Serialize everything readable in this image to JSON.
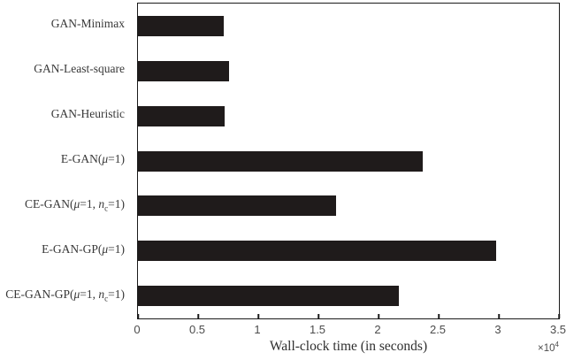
{
  "figure": {
    "background": "#ffffff",
    "bar_color": "#1f1b1b",
    "axis_color": "#1a1a1a",
    "tick_label_color": "#4c4c4c",
    "category_label_color": "#383838"
  },
  "chart_data": {
    "type": "bar",
    "orientation": "horizontal",
    "title": "",
    "xlabel": "Wall-clock time (in seconds)",
    "x_multiplier_base": "×10",
    "x_multiplier_exp": "4",
    "xlim": [
      0,
      35000
    ],
    "grid": false,
    "legend": null,
    "x_ticks": [
      0,
      0.5,
      1,
      1.5,
      2,
      2.5,
      3,
      3.5
    ],
    "x_tick_labels": [
      "0",
      "0.5",
      "1",
      "1.5",
      "2",
      "2.5",
      "3",
      "3.5"
    ],
    "categories": [
      "GAN-Minimax",
      "GAN-Least-square",
      "GAN-Heuristic",
      "E-GAN(μ=1)",
      "CE-GAN(μ=1, nc=1)",
      "E-GAN-GP(μ=1)",
      "CE-GAN-GP(μ=1, nc=1)"
    ],
    "category_labels_html": [
      "GAN-Minimax",
      "GAN-Least-square",
      "GAN-Heuristic",
      "E-GAN(<i>μ</i>=1)",
      "CE-GAN(<i>μ</i>=1, <i>n</i><sub>c</sub>=1)",
      "E-GAN-GP(<i>μ</i>=1)",
      "CE-GAN-GP(<i>μ</i>=1, <i>n</i><sub>c</sub>=1)"
    ],
    "values": [
      7100,
      7600,
      7200,
      23700,
      16500,
      29800,
      21700
    ]
  }
}
